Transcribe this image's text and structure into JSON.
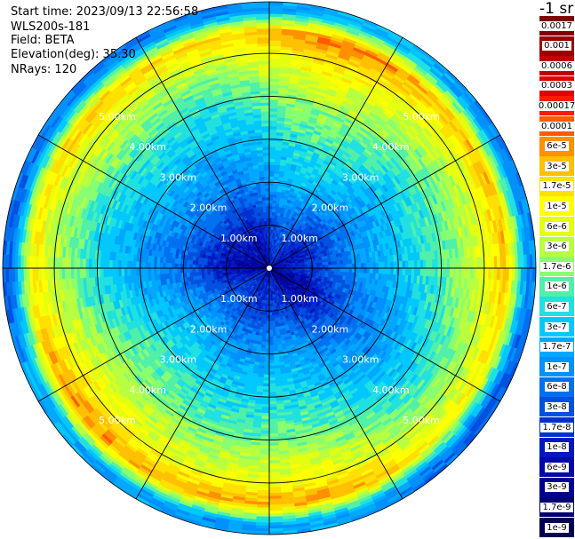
{
  "info": {
    "start_time": "Start time: 2023/09/13 22:56:58",
    "instrument": "WLS200s-181",
    "field": "Field: BETA",
    "elevation": "Elevation(deg): 35.30",
    "nrays": "NRays: 120"
  },
  "colorbar": {
    "units": "-1 sr",
    "levels": [
      {
        "label": "0.0017",
        "color": "#7f0000"
      },
      {
        "label": "0.001",
        "color": "#9e0000"
      },
      {
        "label": "0.0006",
        "color": "#c00000"
      },
      {
        "label": "0.0003",
        "color": "#e00000"
      },
      {
        "label": "0.00017",
        "color": "#ff1a00"
      },
      {
        "label": "0.0001",
        "color": "#ff5a00"
      },
      {
        "label": "6e-5",
        "color": "#ff9000"
      },
      {
        "label": "3e-5",
        "color": "#ffc000"
      },
      {
        "label": "1.7e-5",
        "color": "#ffe000"
      },
      {
        "label": "1e-5",
        "color": "#ffff00"
      },
      {
        "label": "6e-6",
        "color": "#e4ff10"
      },
      {
        "label": "3e-6",
        "color": "#b8ff40"
      },
      {
        "label": "1.7e-6",
        "color": "#88ff70"
      },
      {
        "label": "1e-6",
        "color": "#50f0a8"
      },
      {
        "label": "6e-7",
        "color": "#20e0e0"
      },
      {
        "label": "3e-7",
        "color": "#00c8ff"
      },
      {
        "label": "1.7e-7",
        "color": "#00a8ff"
      },
      {
        "label": "1e-7",
        "color": "#0090ff"
      },
      {
        "label": "6e-8",
        "color": "#0070f0"
      },
      {
        "label": "3e-8",
        "color": "#0050e0"
      },
      {
        "label": "1.7e-8",
        "color": "#0030d0"
      },
      {
        "label": "1e-8",
        "color": "#0018c0"
      },
      {
        "label": "6e-9",
        "color": "#0008a8"
      },
      {
        "label": "3e-9",
        "color": "#000090"
      },
      {
        "label": "1.7e-9",
        "color": "#000070"
      },
      {
        "label": "1e-9",
        "color": "#000050"
      }
    ]
  },
  "chart_data": {
    "type": "heatmap",
    "projection": "polar (PPI scan)",
    "field": "BETA",
    "elevation_deg": 35.3,
    "n_rays": 120,
    "range_rings_km": [
      1,
      2,
      3,
      4,
      5
    ],
    "range_ring_labels": [
      "1.00km",
      "2.00km",
      "3.00km",
      "4.00km",
      "5.00km"
    ],
    "max_range_km": 6.2,
    "spoke_angles_deg": [
      0,
      30,
      60,
      90,
      120,
      150,
      180,
      210,
      240,
      270,
      300,
      330
    ],
    "range_profile": [
      {
        "range_km": 0.0,
        "value": "6e-9"
      },
      {
        "range_km": 1.0,
        "value": "1.7e-8"
      },
      {
        "range_km": 2.0,
        "value": "1e-7"
      },
      {
        "range_km": 3.0,
        "value": "3e-7"
      },
      {
        "range_km": 4.0,
        "value": "1e-6"
      },
      {
        "range_km": 5.0,
        "value": "6e-6"
      },
      {
        "range_km": 5.5,
        "value": "3e-5"
      },
      {
        "range_km": 6.0,
        "value": "1e-7"
      }
    ],
    "colorbar_scale": "log",
    "colorbar_range": [
      "1e-9",
      "0.0017"
    ],
    "grid": true
  }
}
